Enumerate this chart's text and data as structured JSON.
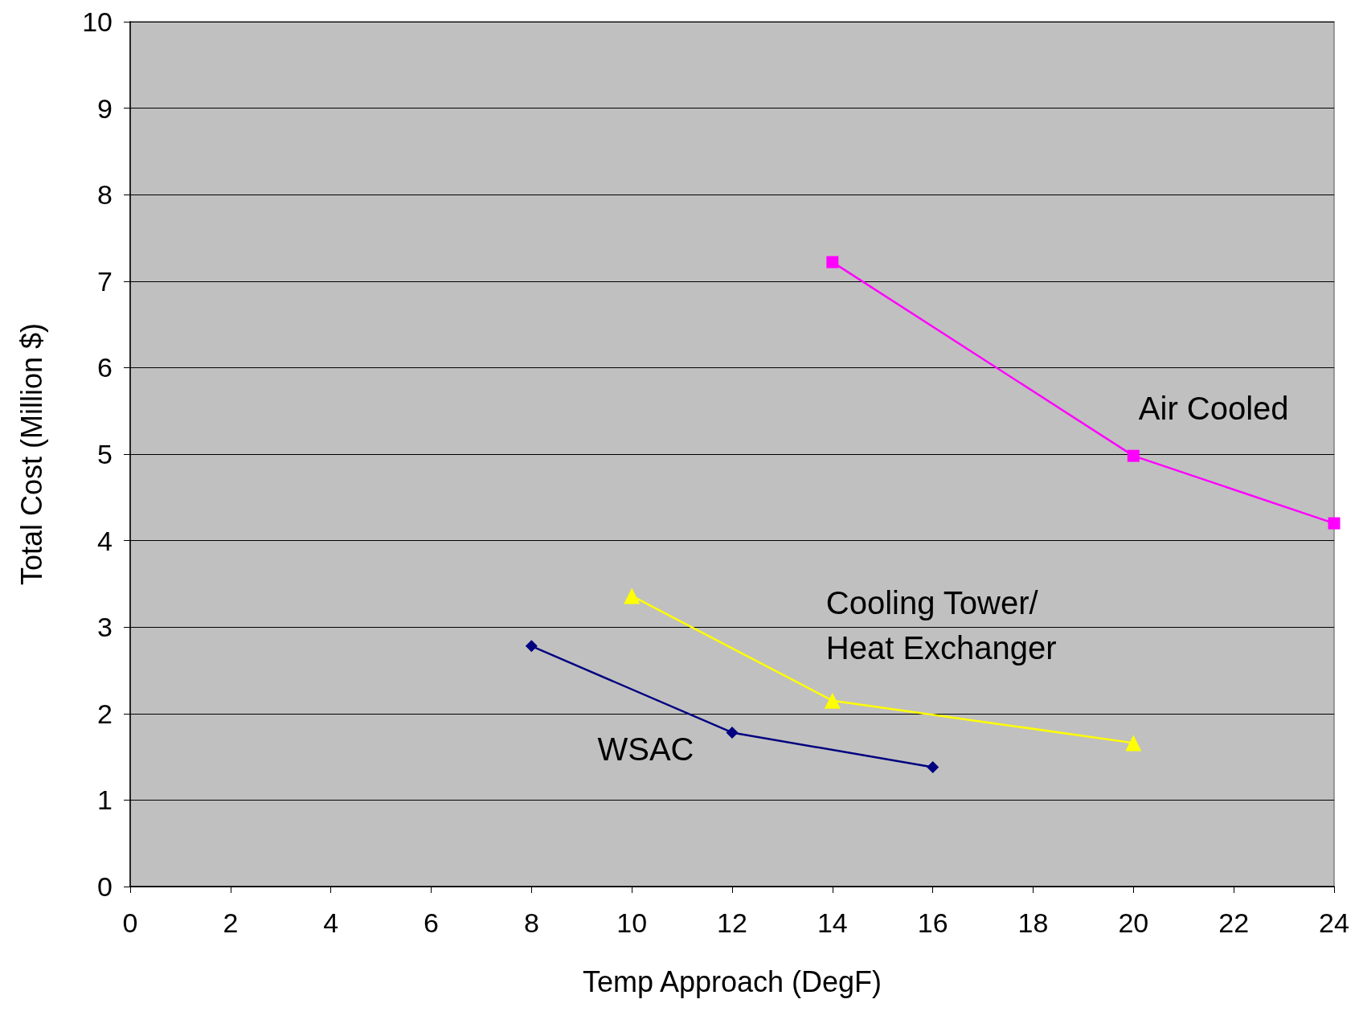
{
  "chart_data": {
    "type": "line",
    "xlabel": "Temp Approach (DegF)",
    "ylabel": "Total Cost (Million $)",
    "xlim": [
      0,
      24
    ],
    "xticks": [
      0,
      2,
      4,
      6,
      8,
      10,
      12,
      14,
      16,
      18,
      20,
      22,
      24
    ],
    "ylim": [
      0,
      10
    ],
    "yticks": [
      0,
      1,
      2,
      3,
      4,
      5,
      6,
      7,
      8,
      9,
      10
    ],
    "grid": "y",
    "series": [
      {
        "name": "WSAC",
        "color": "#000080",
        "marker": "diamond",
        "x": [
          8,
          12,
          16
        ],
        "values": [
          2.78,
          1.78,
          1.38
        ]
      },
      {
        "name": "Cooling Tower/\nHeat Exchanger",
        "color": "#ffff00",
        "marker": "triangle",
        "x": [
          10,
          14,
          20
        ],
        "values": [
          3.36,
          2.15,
          1.66
        ]
      },
      {
        "name": "Air Cooled",
        "color": "#ff00ff",
        "marker": "square",
        "x": [
          14,
          20,
          24
        ],
        "values": [
          7.22,
          4.98,
          4.2
        ]
      }
    ]
  }
}
